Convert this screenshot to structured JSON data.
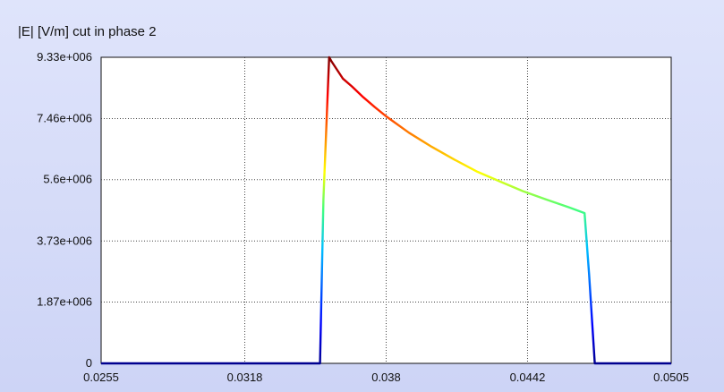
{
  "title": "|E| [V/m] cut in phase 2",
  "chart_data": {
    "type": "line",
    "title": "|E| [V/m] cut in phase 2",
    "xlabel": "",
    "ylabel": "",
    "xlim": [
      0.0255,
      0.0505
    ],
    "ylim": [
      0,
      9330000
    ],
    "x_tick_labels": [
      "0.0255",
      "0.0318",
      "0.038",
      "0.0442",
      "0.0505"
    ],
    "x_tick_values": [
      0.0255,
      0.0318,
      0.038,
      0.0442,
      0.0505
    ],
    "y_tick_labels": [
      "0",
      "1.87e+006",
      "3.73e+006",
      "5.6e+006",
      "7.46e+006",
      "9.33e+006"
    ],
    "y_tick_values": [
      0,
      1870000,
      3730000,
      5600000,
      7460000,
      9330000
    ],
    "grid": true,
    "colormap": "jet (value-colored line)",
    "series": [
      {
        "x": [
          0.0255,
          0.0351,
          0.03525,
          0.0355,
          0.0356,
          0.0361,
          0.0365,
          0.037,
          0.0375,
          0.038,
          0.039,
          0.04,
          0.041,
          0.042,
          0.043,
          0.044,
          0.045,
          0.046,
          0.0467,
          0.0469,
          0.04715,
          0.0505
        ],
        "y": [
          0,
          0,
          5000000,
          9330000,
          9210000,
          8680000,
          8440000,
          8110000,
          7810000,
          7530000,
          7030000,
          6600000,
          6210000,
          5840000,
          5540000,
          5250000,
          5000000,
          4760000,
          4580000,
          2700000,
          0,
          0
        ]
      }
    ]
  }
}
